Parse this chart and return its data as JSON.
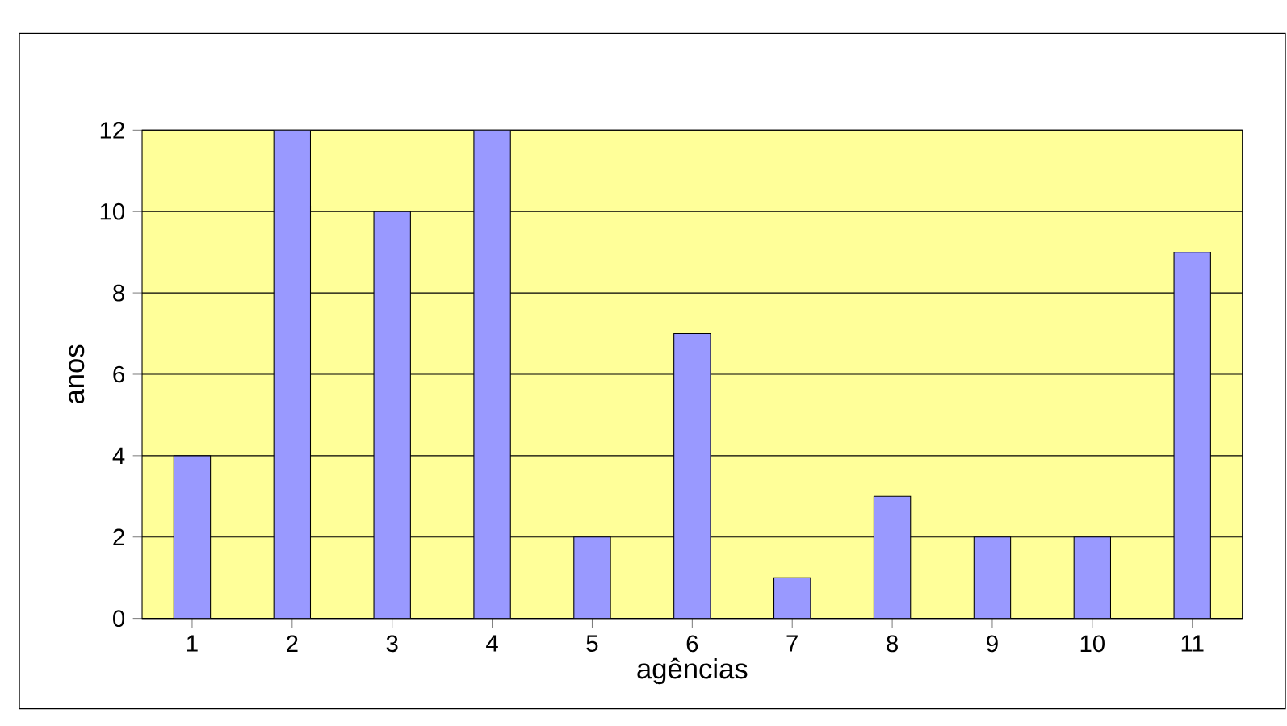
{
  "chart_data": {
    "type": "bar",
    "xlabel": "agências",
    "ylabel": "anos",
    "categories": [
      "1",
      "2",
      "3",
      "4",
      "5",
      "6",
      "7",
      "8",
      "9",
      "10",
      "11"
    ],
    "values": [
      4,
      12,
      10,
      12,
      2,
      7,
      1,
      3,
      2,
      2,
      9
    ],
    "color": "#9999ff",
    "ylim": [
      0,
      12
    ],
    "yticks": [
      0,
      2,
      4,
      6,
      8,
      10,
      12
    ],
    "grid": "y"
  }
}
